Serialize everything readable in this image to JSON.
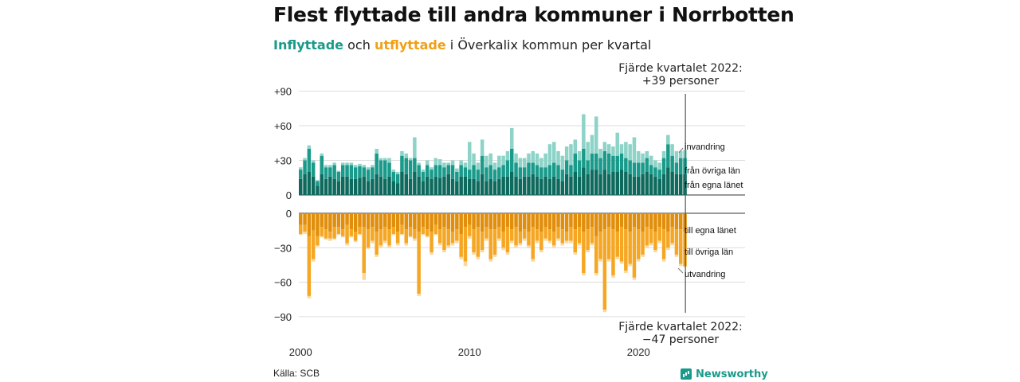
{
  "title": "Flest flyttade till andra kommuner i Norrbotten",
  "subtitle": {
    "in_word": "Inflyttade",
    "connector": "och",
    "out_word": "utflyttade",
    "rest": "i Överkalix kommun per kvartal"
  },
  "annotation_top": {
    "line1": "Fjärde kvartalet 2022:",
    "line2": "+39 personer"
  },
  "annotation_bottom": {
    "line1": "Fjärde kvartalet 2022:",
    "line2": "−47 personer"
  },
  "source": "Källa: SCB",
  "brand": "Newsworthy",
  "colors": {
    "in_own": "#0f6a5e",
    "in_other": "#1a9a8a",
    "in_immig": "#8dd3c7",
    "out_own": "#e08e0b",
    "out_other": "#f5a623",
    "out_emig": "#fbd89a",
    "subtitle_in": "#1a9a8a",
    "subtitle_out": "#f0a017"
  },
  "chart_data": {
    "type": "bar",
    "stacked": true,
    "x_start": "2000 Q1",
    "x_end": "2022 Q4",
    "periods": 92,
    "xticks": [
      "2000",
      "2010",
      "2020"
    ],
    "top_panel": {
      "ylim": [
        0,
        100
      ],
      "yticks": [
        "0",
        "+30",
        "+60",
        "+90"
      ],
      "series_labels": [
        "från egna länet",
        "från övriga län",
        "invandring"
      ],
      "own": [
        14,
        18,
        20,
        16,
        8,
        18,
        14,
        16,
        14,
        12,
        16,
        16,
        14,
        14,
        15,
        16,
        12,
        14,
        18,
        16,
        14,
        16,
        12,
        10,
        20,
        18,
        14,
        20,
        16,
        12,
        16,
        14,
        16,
        15,
        16,
        18,
        14,
        12,
        16,
        16,
        14,
        14,
        12,
        18,
        12,
        14,
        12,
        14,
        16,
        16,
        20,
        16,
        14,
        16,
        16,
        18,
        16,
        14,
        16,
        14,
        16,
        14,
        12,
        18,
        16,
        20,
        16,
        24,
        18,
        22,
        22,
        18,
        22,
        18,
        20,
        20,
        22,
        20,
        18,
        16,
        16,
        18,
        20,
        18,
        16,
        14,
        18,
        24,
        20,
        18,
        18,
        18
      ],
      "other": [
        8,
        12,
        20,
        12,
        4,
        16,
        10,
        8,
        12,
        8,
        10,
        10,
        12,
        10,
        10,
        8,
        10,
        10,
        18,
        14,
        16,
        12,
        8,
        8,
        14,
        14,
        16,
        12,
        10,
        8,
        10,
        8,
        10,
        11,
        8,
        8,
        12,
        8,
        10,
        8,
        8,
        12,
        10,
        16,
        12,
        12,
        10,
        10,
        10,
        14,
        20,
        12,
        10,
        8,
        12,
        10,
        10,
        10,
        8,
        12,
        12,
        12,
        10,
        12,
        10,
        16,
        14,
        16,
        12,
        14,
        14,
        14,
        16,
        18,
        14,
        14,
        14,
        12,
        12,
        12,
        12,
        10,
        12,
        8,
        8,
        8,
        14,
        20,
        14,
        10,
        14,
        14
      ],
      "immig": [
        2,
        2,
        3,
        2,
        1,
        2,
        2,
        2,
        2,
        1,
        2,
        2,
        2,
        2,
        2,
        2,
        2,
        2,
        4,
        2,
        2,
        4,
        2,
        2,
        4,
        4,
        2,
        18,
        2,
        2,
        4,
        2,
        6,
        5,
        4,
        2,
        4,
        3,
        4,
        4,
        24,
        10,
        6,
        14,
        10,
        10,
        6,
        10,
        8,
        8,
        18,
        8,
        8,
        8,
        8,
        10,
        10,
        8,
        12,
        18,
        18,
        12,
        12,
        12,
        18,
        12,
        8,
        30,
        16,
        16,
        32,
        8,
        8,
        8,
        8,
        20,
        8,
        14,
        14,
        22,
        10,
        8,
        6,
        8,
        6,
        6,
        6,
        8,
        10,
        10,
        6,
        7
      ]
    },
    "bottom_panel": {
      "ylim": [
        -100,
        0
      ],
      "yticks": [
        "0",
        "−30",
        "−60",
        "−90"
      ],
      "series_labels": [
        "till egna länet",
        "till övriga län",
        "utvandring"
      ],
      "own": [
        -10,
        -10,
        -20,
        -15,
        -20,
        -12,
        -14,
        -16,
        -12,
        -12,
        -14,
        -10,
        -14,
        -16,
        -12,
        -12,
        -14,
        -12,
        -16,
        -14,
        -12,
        -14,
        -12,
        -16,
        -10,
        -14,
        -12,
        -14,
        -16,
        -12,
        -14,
        -16,
        -10,
        -14,
        -12,
        -14,
        -16,
        -14,
        -18,
        -12,
        -10,
        -14,
        -12,
        -16,
        -12,
        -14,
        -14,
        -12,
        -16,
        -12,
        -14,
        -12,
        -16,
        -14,
        -16,
        -12,
        -14,
        -16,
        -12,
        -14,
        -16,
        -12,
        -14,
        -16,
        -12,
        -14,
        -12,
        -16,
        -14,
        -12,
        -20,
        -16,
        -14,
        -12,
        -14,
        -16,
        -12,
        -14,
        -16,
        -12,
        -14,
        -16,
        -12,
        -14,
        -16,
        -12,
        -14,
        -16,
        -12,
        -14,
        -14,
        -16
      ],
      "other": [
        -8,
        -6,
        -52,
        -25,
        -8,
        -8,
        -8,
        -6,
        -10,
        -6,
        -6,
        -16,
        -6,
        -8,
        -6,
        -40,
        -16,
        -12,
        -20,
        -14,
        -12,
        -14,
        -6,
        -10,
        -8,
        -12,
        -8,
        -8,
        -54,
        -6,
        -6,
        -18,
        -8,
        -12,
        -20,
        -14,
        -10,
        -10,
        -20,
        -30,
        -10,
        -20,
        -26,
        -16,
        -10,
        -26,
        -22,
        -10,
        -14,
        -22,
        -10,
        -16,
        -10,
        -8,
        -12,
        -28,
        -10,
        -16,
        -10,
        -10,
        -12,
        -10,
        -12,
        -8,
        -12,
        -20,
        -14,
        -36,
        -18,
        -14,
        -32,
        -24,
        -70,
        -28,
        -40,
        -22,
        -30,
        -36,
        -28,
        -44,
        -26,
        -20,
        -16,
        -12,
        -16,
        -12,
        -26,
        -14,
        -14,
        -22,
        -30,
        -30
      ],
      "emig": [
        -1,
        -2,
        -2,
        -2,
        -1,
        -1,
        -1,
        -2,
        -1,
        -1,
        -1,
        -2,
        -1,
        -1,
        -1,
        -6,
        -1,
        -2,
        -2,
        -2,
        -2,
        -2,
        -1,
        -2,
        -1,
        -2,
        -1,
        -2,
        -2,
        -1,
        -1,
        -2,
        -1,
        -2,
        -2,
        -2,
        -2,
        -2,
        -2,
        -4,
        -2,
        -2,
        -2,
        -2,
        -2,
        -2,
        -2,
        -2,
        -2,
        -2,
        -2,
        -2,
        -2,
        -2,
        -2,
        -2,
        -2,
        -2,
        -2,
        -2,
        -2,
        -2,
        -2,
        -2,
        -2,
        -2,
        -2,
        -2,
        -2,
        -2,
        -2,
        -2,
        -2,
        -2,
        -2,
        -2,
        -2,
        -2,
        -2,
        -2,
        -2,
        -2,
        -2,
        -2,
        -2,
        -2,
        -2,
        -2,
        -2,
        -2,
        -2,
        -1
      ]
    }
  }
}
